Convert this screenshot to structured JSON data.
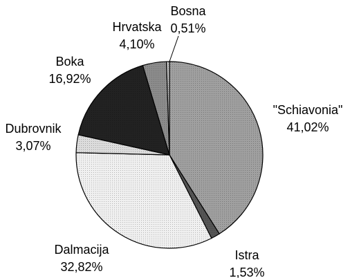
{
  "chart_data": {
    "type": "pie",
    "categories": [
      "\"Schiavonia\"",
      "Istra",
      "Dalmacija",
      "Dubrovnik",
      "Boka",
      "Hrvatska",
      "Bosna"
    ],
    "values": [
      41.02,
      1.53,
      32.82,
      3.07,
      16.92,
      4.1,
      0.51
    ],
    "value_labels": [
      "41,02%",
      "1,53%",
      "32,82%",
      "3,07%",
      "16,92%",
      "4,10%",
      "0,51%"
    ],
    "colors": [
      "#a0a0a0",
      "#555555",
      "#f0f0f0",
      "#dcdcdc",
      "#222222",
      "#8c8c8c",
      "#c8c8c8"
    ]
  }
}
